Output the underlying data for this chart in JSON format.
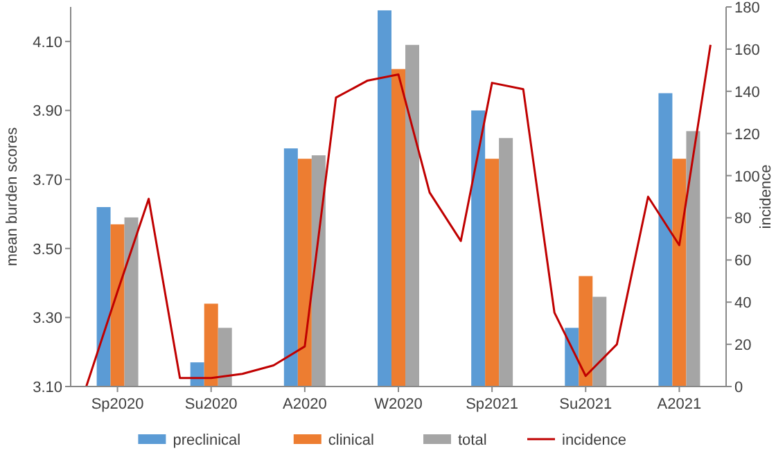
{
  "chart_data": {
    "type": "bar",
    "ylabel": "mean burden scores",
    "y2label": "incidence",
    "categories": [
      null,
      "Sp2020",
      null,
      null,
      "Su2020",
      null,
      null,
      "A2020",
      null,
      null,
      "W2020",
      null,
      null,
      "Sp2021",
      null,
      null,
      "Su2021",
      null,
      null,
      "A2021",
      null
    ],
    "ylim": [
      3.1,
      4.2
    ],
    "yticks": [
      {
        "value": 3.1,
        "label": "3.10"
      },
      {
        "value": 3.3,
        "label": "3.30"
      },
      {
        "value": 3.5,
        "label": "3.50"
      },
      {
        "value": 3.7,
        "label": "3.70"
      },
      {
        "value": 3.9,
        "label": "3.90"
      },
      {
        "value": 4.1,
        "label": "4.10"
      }
    ],
    "y2lim": [
      0,
      180
    ],
    "y2ticks": [
      0,
      20,
      40,
      60,
      80,
      100,
      120,
      140,
      160,
      180
    ],
    "grid": false,
    "legend": "bottom",
    "series": [
      {
        "name": "preclinical",
        "color": "#5b9bd5",
        "values": [
          null,
          3.62,
          null,
          null,
          3.17,
          null,
          null,
          3.79,
          null,
          null,
          4.19,
          null,
          null,
          3.9,
          null,
          null,
          3.27,
          null,
          null,
          3.95,
          null
        ]
      },
      {
        "name": "clinical",
        "color": "#ed7d31",
        "values": [
          null,
          3.57,
          null,
          null,
          3.34,
          null,
          null,
          3.76,
          null,
          null,
          4.02,
          null,
          null,
          3.76,
          null,
          null,
          3.42,
          null,
          null,
          3.76,
          null
        ]
      },
      {
        "name": "total",
        "color": "#a5a5a5",
        "values": [
          null,
          3.59,
          null,
          null,
          3.27,
          null,
          null,
          3.77,
          null,
          null,
          4.09,
          null,
          null,
          3.82,
          null,
          null,
          3.36,
          null,
          null,
          3.84,
          null
        ]
      },
      {
        "name": "incidence",
        "type": "line",
        "axis": "y2",
        "color": "#c00000",
        "marker": "none",
        "values": [
          0,
          45,
          89,
          4,
          4,
          6,
          10,
          19,
          137,
          145,
          148,
          92,
          69,
          144,
          141,
          35,
          5,
          20,
          90,
          67,
          162
        ]
      }
    ]
  }
}
